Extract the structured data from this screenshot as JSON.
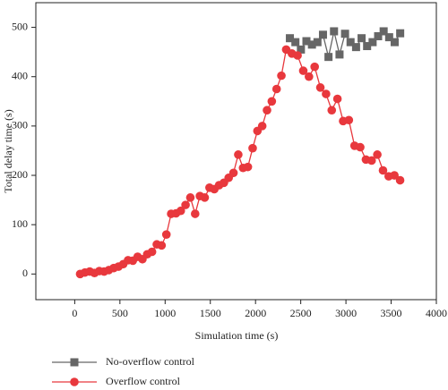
{
  "chart_data": {
    "type": "line",
    "x_label": "Simulation time (s)",
    "y_label": "Total delay time (s)",
    "xlim": [
      -430,
      4000
    ],
    "ylim": [
      -52,
      550
    ],
    "xticks": [
      0,
      500,
      1000,
      1500,
      2000,
      2500,
      3000,
      3500,
      4000
    ],
    "yticks": [
      0,
      100,
      200,
      300,
      400,
      500
    ],
    "legend": "bottom-left",
    "series": [
      {
        "name": "No-overflow control",
        "color": "#666666",
        "marker": "square",
        "x": [
          2380,
          2441,
          2502,
          2563,
          2624,
          2685,
          2746,
          2807,
          2868,
          2929,
          2990,
          3051,
          3112,
          3173,
          3234,
          3295,
          3356,
          3417,
          3478,
          3539,
          3600
        ],
        "values": [
          478,
          470,
          455,
          472,
          465,
          470,
          485,
          440,
          492,
          445,
          487,
          470,
          460,
          478,
          462,
          470,
          482,
          492,
          480,
          470,
          488
        ]
      },
      {
        "name": "Overflow control",
        "color": "#e8383d",
        "marker": "circle",
        "x": [
          60,
          113,
          166,
          219,
          272,
          325,
          378,
          431,
          484,
          537,
          590,
          643,
          696,
          749,
          802,
          855,
          908,
          961,
          1014,
          1067,
          1120,
          1173,
          1226,
          1279,
          1332,
          1385,
          1438,
          1491,
          1544,
          1597,
          1650,
          1703,
          1756,
          1809,
          1862,
          1915,
          1968,
          2021,
          2074,
          2127,
          2180,
          2233,
          2286,
          2339,
          2402,
          2465,
          2528,
          2591,
          2654,
          2717,
          2780,
          2843,
          2906,
          2969,
          3032,
          3095,
          3158,
          3221,
          3284,
          3347,
          3410,
          3473,
          3536,
          3599
        ],
        "values": [
          0,
          3,
          5,
          2,
          6,
          5,
          8,
          12,
          15,
          20,
          28,
          27,
          35,
          30,
          40,
          45,
          60,
          58,
          80,
          122,
          123,
          128,
          140,
          155,
          122,
          158,
          155,
          175,
          172,
          180,
          185,
          195,
          205,
          242,
          215,
          217,
          255,
          290,
          300,
          332,
          350,
          375,
          402,
          455,
          447,
          443,
          412,
          400,
          420,
          378,
          365,
          332,
          355,
          310,
          312,
          260,
          257,
          232,
          230,
          242,
          210,
          198,
          200,
          190
        ]
      }
    ]
  }
}
